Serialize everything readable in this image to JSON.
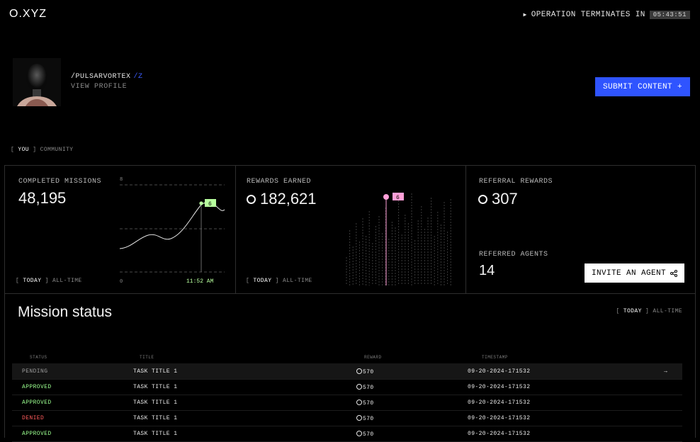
{
  "header": {
    "logo": "O.XYZ",
    "operation_label": "OPERATION TERMINATES IN",
    "timer": "05:43:51"
  },
  "profile": {
    "handle": "/PULSARVORTEX",
    "handle_suffix": "/Z",
    "view_profile": "VIEW PROFILE",
    "submit_label": "SUBMIT CONTENT +"
  },
  "scope_tabs": {
    "active": "YOU",
    "inactive": "COMMUNITY"
  },
  "cards": {
    "missions": {
      "label": "COMPLETED MISSIONS",
      "value": "48,195",
      "toggle_active": "TODAY",
      "toggle_inactive": "ALL-TIME",
      "axis_top": "8",
      "axis_bottom": "0",
      "point_label": "6",
      "time_label": "11:52 AM"
    },
    "rewards": {
      "label": "REWARDS EARNED",
      "value": "182,621",
      "toggle_active": "TODAY",
      "toggle_inactive": "ALL-TIME",
      "point_label": "6"
    },
    "referral": {
      "label": "REFERRAL REWARDS",
      "value": "307",
      "agents_label": "REFERRED AGENTS",
      "agents_value": "14",
      "invite_label": "INVITE AN AGENT"
    }
  },
  "mission_status": {
    "title": "Mission status",
    "toggle_active": "TODAY",
    "toggle_inactive": "ALL-TIME",
    "columns": [
      "STATUS",
      "TITLE",
      "REWARD",
      "TIMESTAMP"
    ],
    "rows": [
      {
        "status": "PENDING",
        "title": "TASK TITLE 1",
        "reward": "570",
        "timestamp": "09-20-2024-171532",
        "arrow": "→"
      },
      {
        "status": "APPROVED",
        "title": "TASK TITLE 1",
        "reward": "570",
        "timestamp": "09-20-2024-171532"
      },
      {
        "status": "APPROVED",
        "title": "TASK TITLE 1",
        "reward": "570",
        "timestamp": "09-20-2024-171532"
      },
      {
        "status": "DENIED",
        "title": "TASK TITLE 1",
        "reward": "570",
        "timestamp": "09-20-2024-171532"
      },
      {
        "status": "APPROVED",
        "title": "TASK TITLE 1",
        "reward": "570",
        "timestamp": "09-20-2024-171532"
      }
    ]
  },
  "colors": {
    "accent_blue": "#2f54ff",
    "approved": "#9bff8f",
    "denied": "#ff5c5c",
    "chart_highlight_green": "#b8ff9e",
    "chart_highlight_pink": "#ff9fd8"
  }
}
